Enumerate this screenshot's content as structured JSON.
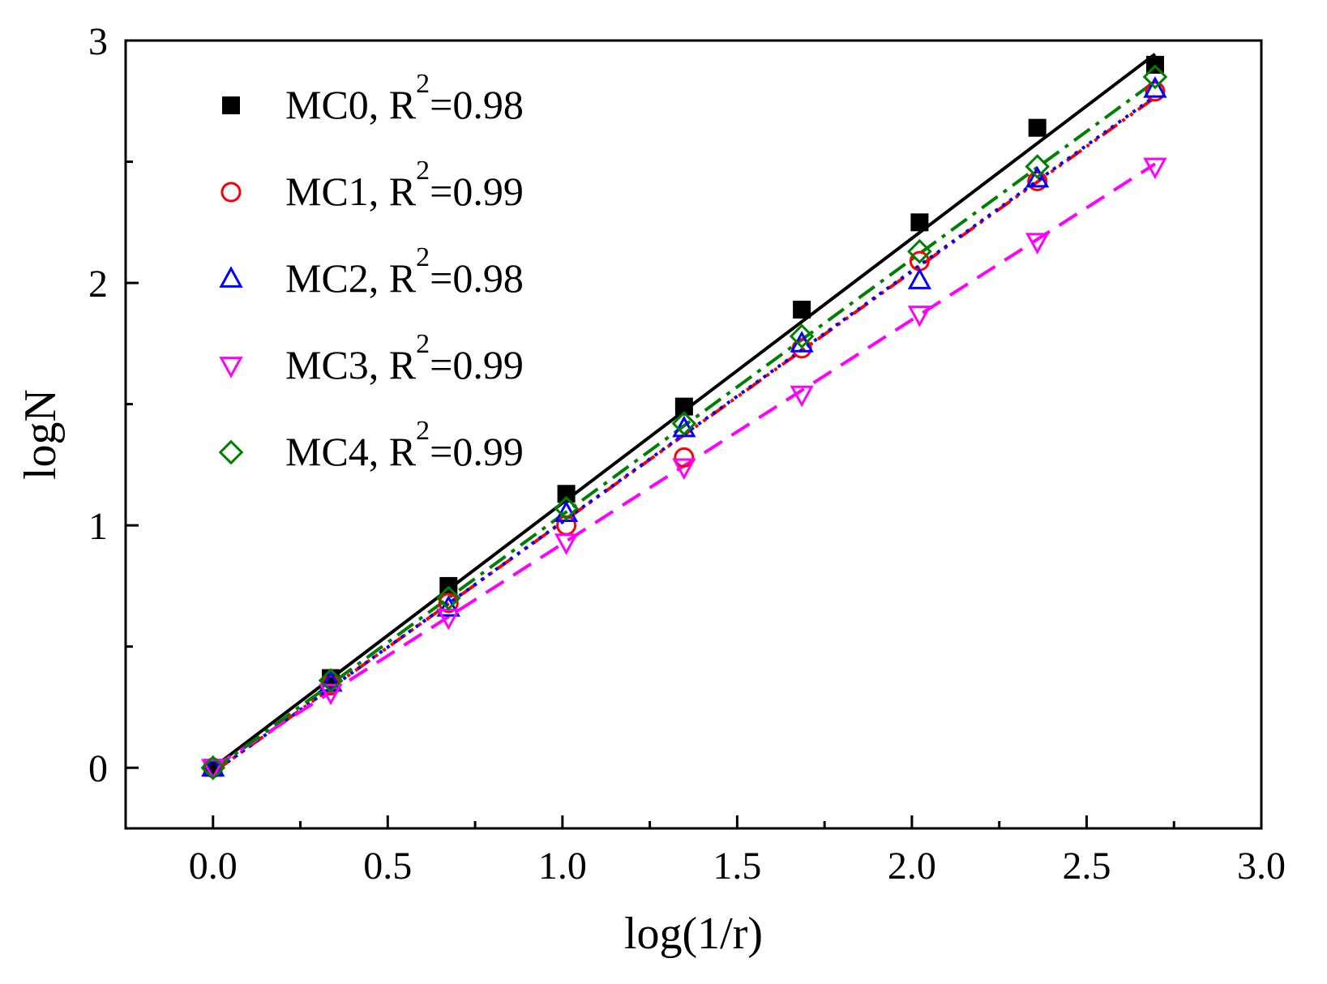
{
  "chart_data": {
    "type": "scatter",
    "xlabel": "log(1/r)",
    "ylabel": "logN",
    "xlim": [
      -0.25,
      3.0
    ],
    "ylim": [
      -0.25,
      3.0
    ],
    "x_ticks": [
      {
        "value": 0.0,
        "label": "0.0"
      },
      {
        "value": 0.5,
        "label": "0.5"
      },
      {
        "value": 1.0,
        "label": "1.0"
      },
      {
        "value": 1.5,
        "label": "1.5"
      },
      {
        "value": 2.0,
        "label": "2.0"
      },
      {
        "value": 2.5,
        "label": "2.5"
      },
      {
        "value": 3.0,
        "label": "3.0"
      }
    ],
    "y_ticks": [
      {
        "value": 0,
        "label": "0"
      },
      {
        "value": 1,
        "label": "1"
      },
      {
        "value": 2,
        "label": "2"
      },
      {
        "value": 3,
        "label": "3"
      }
    ],
    "x_minor_ticks": [
      0.25,
      0.75,
      1.25,
      1.75,
      2.25,
      2.75
    ],
    "y_minor_ticks": [
      0.5,
      1.5,
      2.5
    ],
    "legend_position": "top-left",
    "x": [
      0.0,
      0.337,
      0.674,
      1.011,
      1.348,
      1.685,
      2.022,
      2.359,
      2.696
    ],
    "series": [
      {
        "name": "MC0",
        "legend_prefix": "MC0, R",
        "sup": "2",
        "legend_suffix": "=0.98",
        "r2": 0.98,
        "marker": "square-filled",
        "color": "#000000",
        "line_style": "solid",
        "values": [
          0.0,
          0.37,
          0.75,
          1.13,
          1.49,
          1.89,
          2.25,
          2.64,
          2.9
        ],
        "fit": {
          "slope": 1.092,
          "intercept": 0.0
        }
      },
      {
        "name": "MC1",
        "legend_prefix": "MC1, R",
        "sup": "2",
        "legend_suffix": "=0.99",
        "r2": 0.99,
        "marker": "circle-open",
        "color": "#ff0000",
        "line_style": "dash-dot-dot",
        "values": [
          0.0,
          0.34,
          0.68,
          1.0,
          1.28,
          1.73,
          2.09,
          2.42,
          2.79
        ],
        "fit": {
          "slope": 1.033,
          "intercept": -0.02
        }
      },
      {
        "name": "MC2",
        "legend_prefix": "MC2, R",
        "sup": "2",
        "legend_suffix": "=0.98",
        "r2": 0.98,
        "marker": "triangle-up-open",
        "color": "#0000ff",
        "line_style": "dotted",
        "values": [
          0.0,
          0.35,
          0.66,
          1.05,
          1.4,
          1.75,
          2.01,
          2.43,
          2.8
        ],
        "fit": {
          "slope": 1.035,
          "intercept": -0.02
        }
      },
      {
        "name": "MC3",
        "legend_prefix": "MC3, R",
        "sup": "2",
        "legend_suffix": "=0.99",
        "r2": 0.99,
        "marker": "triangle-down-open",
        "color": "#ff00ff",
        "line_style": "dashed",
        "values": [
          0.0,
          0.31,
          0.62,
          0.93,
          1.24,
          1.54,
          1.87,
          2.17,
          2.48
        ],
        "fit": {
          "slope": 0.924,
          "intercept": 0.0
        }
      },
      {
        "name": "MC4",
        "legend_prefix": "MC4, R",
        "sup": "2",
        "legend_suffix": "=0.99",
        "r2": 0.99,
        "marker": "diamond-open",
        "color": "#008000",
        "line_style": "dash-dot",
        "values": [
          0.0,
          0.36,
          0.7,
          1.07,
          1.42,
          1.78,
          2.13,
          2.48,
          2.85
        ],
        "fit": {
          "slope": 1.054,
          "intercept": -0.01
        }
      }
    ]
  }
}
